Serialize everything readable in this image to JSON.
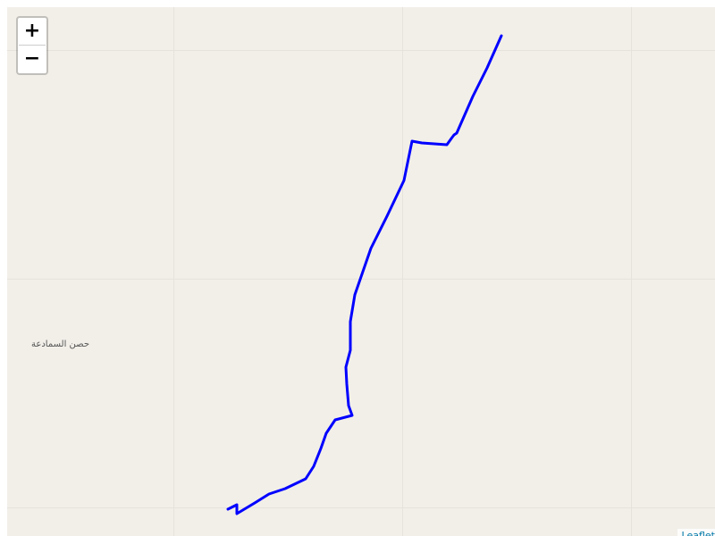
{
  "map": {
    "zoom_in_label": "+",
    "zoom_out_label": "−",
    "place_label": "حصن السمادعة",
    "attribution_text": "Leaflet",
    "background_color": "#f2efe9",
    "route_color": "#0000ff"
  }
}
